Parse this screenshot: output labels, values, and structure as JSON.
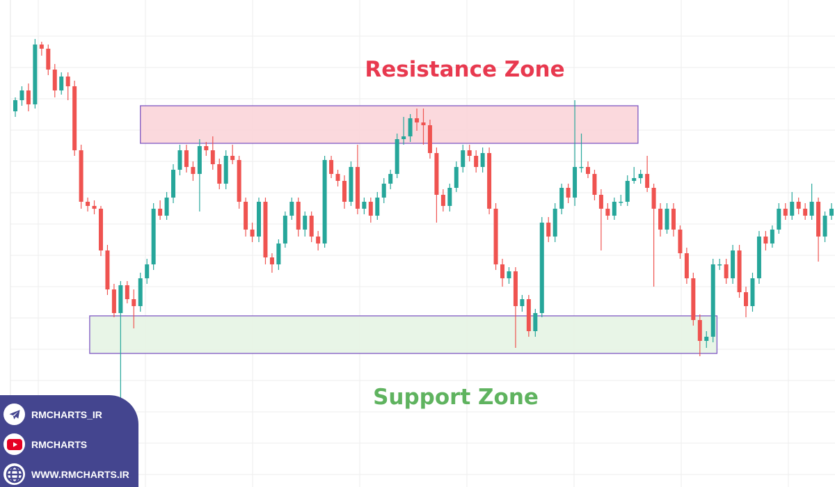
{
  "colors": {
    "up": "#26a69a",
    "down": "#ef5350",
    "resistance_fill": "#fbd5d9",
    "support_fill": "#e6f4e4",
    "zone_border": "#7e57c2",
    "resistance_text": "#e8394f",
    "support_text": "#5fb35f",
    "grid": "#eeeeee",
    "panel": "#44458f"
  },
  "chart_data": {
    "type": "candlestick",
    "title": "",
    "grid": true,
    "ylim": [
      -35,
      140
    ],
    "ohlc": [
      [
        100,
        105,
        98,
        104
      ],
      [
        104,
        109,
        102,
        107.5
      ],
      [
        107.5,
        110,
        100,
        102.5
      ],
      [
        102.5,
        126,
        101,
        124
      ],
      [
        124,
        125,
        120,
        122.5
      ],
      [
        122.5,
        124,
        113,
        115
      ],
      [
        115,
        117,
        105,
        107.5
      ],
      [
        107.5,
        114,
        106,
        112.5
      ],
      [
        112.5,
        114,
        104,
        109
      ],
      [
        109,
        111,
        84,
        86
      ],
      [
        86,
        88,
        65,
        67.5
      ],
      [
        67.5,
        69,
        64,
        66
      ],
      [
        66,
        68,
        63,
        65
      ],
      [
        65,
        66,
        48,
        50
      ],
      [
        50,
        52,
        34,
        36
      ],
      [
        36,
        38,
        26,
        27.5
      ],
      [
        27.5,
        39,
        -22,
        37.5
      ],
      [
        37.5,
        39,
        31,
        32.5
      ],
      [
        32.5,
        36,
        22,
        30
      ],
      [
        30,
        42,
        28,
        40
      ],
      [
        40,
        47,
        38,
        45
      ],
      [
        45,
        67,
        43,
        65
      ],
      [
        65,
        68,
        61,
        62.5
      ],
      [
        62.5,
        71,
        61,
        69
      ],
      [
        69,
        81,
        67,
        79
      ],
      [
        79,
        88,
        77,
        86
      ],
      [
        86,
        88,
        78,
        80
      ],
      [
        80,
        82,
        75,
        77.5
      ],
      [
        77.5,
        90,
        64,
        87.5
      ],
      [
        87.5,
        89,
        84,
        86
      ],
      [
        86,
        91,
        79,
        81
      ],
      [
        81,
        83,
        72,
        74
      ],
      [
        74,
        86,
        72,
        84
      ],
      [
        84,
        88,
        81,
        82.5
      ],
      [
        82.5,
        84,
        65,
        67.5
      ],
      [
        67.5,
        69,
        55,
        57.5
      ],
      [
        57.5,
        60,
        53,
        55
      ],
      [
        55,
        69,
        53,
        67.5
      ],
      [
        67.5,
        69,
        45,
        47.5
      ],
      [
        47.5,
        49,
        42,
        45
      ],
      [
        45,
        54,
        43,
        52.5
      ],
      [
        52.5,
        64,
        51,
        62.5
      ],
      [
        62.5,
        69,
        61,
        67.5
      ],
      [
        67.5,
        69,
        55,
        57.5
      ],
      [
        57.5,
        64,
        55,
        62.5
      ],
      [
        62.5,
        64,
        53,
        55
      ],
      [
        55,
        57,
        50,
        52.5
      ],
      [
        52.5,
        84,
        51,
        82.5
      ],
      [
        82.5,
        84,
        76,
        77.5
      ],
      [
        77.5,
        79,
        73,
        75
      ],
      [
        75,
        77,
        65,
        67.5
      ],
      [
        67.5,
        82,
        66,
        80
      ],
      [
        80,
        88,
        63,
        65
      ],
      [
        65,
        69,
        63,
        67.5
      ],
      [
        67.5,
        69,
        60,
        62.5
      ],
      [
        62.5,
        71,
        61,
        69
      ],
      [
        69,
        76,
        67,
        74
      ],
      [
        74,
        79,
        72,
        77.5
      ],
      [
        77.5,
        92,
        76,
        90
      ],
      [
        90,
        98,
        88,
        91
      ],
      [
        91,
        99,
        89,
        97.5
      ],
      [
        97.5,
        101,
        93,
        96
      ],
      [
        96,
        101,
        88,
        95
      ],
      [
        95,
        97,
        83,
        85
      ],
      [
        85,
        87,
        60,
        70
      ],
      [
        70,
        72,
        64,
        66
      ],
      [
        66,
        74,
        64,
        72.5
      ],
      [
        72.5,
        82,
        71,
        80
      ],
      [
        80,
        88,
        78,
        86
      ],
      [
        86,
        88,
        82,
        84
      ],
      [
        84,
        86,
        78,
        80
      ],
      [
        80,
        87,
        78,
        85
      ],
      [
        85,
        87,
        63,
        65
      ],
      [
        65,
        67,
        43,
        45
      ],
      [
        45,
        47,
        37,
        40
      ],
      [
        40,
        44,
        38,
        42.5
      ],
      [
        42.5,
        44,
        15,
        30
      ],
      [
        30,
        34,
        28,
        32.5
      ],
      [
        32.5,
        34,
        19,
        21
      ],
      [
        21,
        29,
        19,
        27.5
      ],
      [
        27.5,
        62,
        26,
        60
      ],
      [
        60,
        62,
        53,
        55
      ],
      [
        55,
        67,
        53,
        65
      ],
      [
        65,
        74,
        63,
        72.5
      ],
      [
        72.5,
        74,
        67,
        69
      ],
      [
        69,
        104,
        66,
        80
      ],
      [
        80,
        92,
        78,
        80
      ],
      [
        80,
        82,
        76,
        77.5
      ],
      [
        77.5,
        79,
        68,
        70
      ],
      [
        70,
        72,
        50,
        65
      ],
      [
        65,
        67,
        61,
        62.5
      ],
      [
        62.5,
        69,
        61,
        67.5
      ],
      [
        67.5,
        70,
        66,
        67.5
      ],
      [
        67.5,
        77,
        66,
        75
      ],
      [
        75,
        80,
        74,
        76
      ],
      [
        76,
        79,
        74,
        77.5
      ],
      [
        77.5,
        84,
        71,
        72.5
      ],
      [
        72.5,
        74,
        37,
        65
      ],
      [
        65,
        67,
        55,
        57.5
      ],
      [
        57.5,
        67,
        56,
        65
      ],
      [
        65,
        67,
        55,
        57.5
      ],
      [
        57.5,
        59,
        47,
        49
      ],
      [
        49,
        51,
        38,
        40
      ],
      [
        40,
        42,
        23,
        25
      ],
      [
        25,
        27,
        12,
        17.5
      ],
      [
        17.5,
        21,
        15,
        19
      ],
      [
        19,
        47,
        17,
        45
      ],
      [
        45,
        47,
        43,
        45
      ],
      [
        45,
        47,
        38,
        40
      ],
      [
        40,
        52,
        38,
        50
      ],
      [
        50,
        52,
        33,
        35
      ],
      [
        35,
        37,
        26,
        30
      ],
      [
        30,
        42,
        28,
        40
      ],
      [
        40,
        57,
        38,
        55
      ],
      [
        55,
        57,
        50,
        52.5
      ],
      [
        52.5,
        59,
        51,
        57.5
      ],
      [
        57.5,
        67,
        56,
        65
      ],
      [
        65,
        67,
        61,
        62.5
      ],
      [
        62.5,
        71,
        61,
        67.5
      ],
      [
        67.5,
        69,
        63,
        65
      ],
      [
        65,
        67,
        61,
        62.5
      ],
      [
        62.5,
        74,
        61,
        67.5
      ],
      [
        67.5,
        69,
        46,
        55
      ],
      [
        55,
        64,
        53,
        62.5
      ],
      [
        62.5,
        67,
        61,
        65
      ]
    ],
    "zones": [
      {
        "name": "resistance",
        "label": "Resistance Zone",
        "price_low": 88.5,
        "price_high": 102,
        "start_index": 19,
        "end_index": 94.6
      },
      {
        "name": "support",
        "label": "Support Zone",
        "price_low": 13,
        "price_high": 26.5,
        "start_index": 11.3,
        "end_index": 106.6
      }
    ]
  },
  "social": {
    "telegram": {
      "icon": "telegram-icon",
      "label": "RMCHARTS_IR"
    },
    "youtube": {
      "icon": "youtube-icon",
      "label": "RMCHARTS"
    },
    "website": {
      "icon": "globe-icon",
      "label": "WWW.RMCHARTS.IR"
    }
  }
}
